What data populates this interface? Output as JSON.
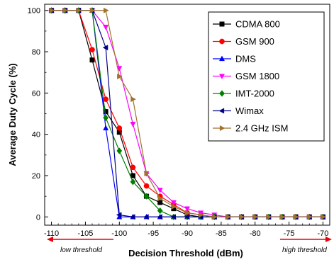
{
  "chart_data": {
    "type": "line",
    "xlabel": "Decision Threshold (dBm)",
    "ylabel": "Average Duty Cycle (%)",
    "xlim": [
      -111,
      -69
    ],
    "ylim": [
      -4,
      103
    ],
    "x_ticks": [
      -110,
      -105,
      -100,
      -95,
      -90,
      -85,
      -80,
      -75,
      -70
    ],
    "y_ticks": [
      0,
      20,
      40,
      60,
      80,
      100
    ],
    "grid": false,
    "legend_position": "top-right",
    "x": [
      -110,
      -108,
      -106,
      -104,
      -102,
      -100,
      -98,
      -96,
      -94,
      -92,
      -90,
      -88,
      -86,
      -84,
      -82,
      -80,
      -78,
      -76,
      -74,
      -72,
      -70
    ],
    "series": [
      {
        "name": "CDMA 800",
        "color": "#000000",
        "marker": "square",
        "values": [
          100,
          100,
          100,
          76,
          51,
          41,
          20,
          10,
          7,
          4,
          1,
          0,
          0,
          0,
          0,
          0,
          0,
          0,
          0,
          0,
          0
        ]
      },
      {
        "name": "GSM 900",
        "color": "#ff0000",
        "marker": "circle",
        "values": [
          100,
          100,
          100,
          81,
          57,
          43,
          24,
          15,
          10,
          6,
          2,
          1,
          0,
          0,
          0,
          0,
          0,
          0,
          0,
          0,
          0
        ]
      },
      {
        "name": "DMS",
        "color": "#0000ff",
        "marker": "triangle-up",
        "values": [
          100,
          100,
          100,
          100,
          43,
          0,
          0,
          0,
          0,
          0,
          0,
          0,
          0,
          0,
          0,
          0,
          0,
          0,
          0,
          0,
          0
        ]
      },
      {
        "name": "GSM 1800",
        "color": "#ff00ff",
        "marker": "triangle-down",
        "values": [
          100,
          100,
          100,
          100,
          92,
          72,
          45,
          21,
          13,
          7,
          4,
          2,
          1,
          0,
          0,
          0,
          0,
          0,
          0,
          0,
          0
        ]
      },
      {
        "name": "IMT-2000",
        "color": "#008000",
        "marker": "diamond",
        "values": [
          100,
          100,
          100,
          100,
          48,
          32,
          17,
          10,
          3,
          0,
          0,
          0,
          0,
          0,
          0,
          0,
          0,
          0,
          0,
          0,
          0
        ]
      },
      {
        "name": "Wimax",
        "color": "#00008b",
        "marker": "triangle-left",
        "values": [
          100,
          100,
          100,
          100,
          82,
          1,
          0,
          0,
          0,
          0,
          0,
          0,
          0,
          0,
          0,
          0,
          0,
          0,
          0,
          0,
          0
        ]
      },
      {
        "name": "2.4 GHz ISM",
        "color": "#a0722d",
        "marker": "triangle-right",
        "values": [
          100,
          100,
          100,
          100,
          100,
          68,
          57,
          21,
          9,
          5,
          2,
          1,
          0,
          0,
          0,
          0,
          0,
          0,
          0,
          0,
          0
        ]
      }
    ],
    "annotations": [
      {
        "text": "low threshold",
        "arrow_direction": "left",
        "color": "#e8000b"
      },
      {
        "text": "high threshold",
        "arrow_direction": "right",
        "color": "#e8000b"
      }
    ]
  }
}
